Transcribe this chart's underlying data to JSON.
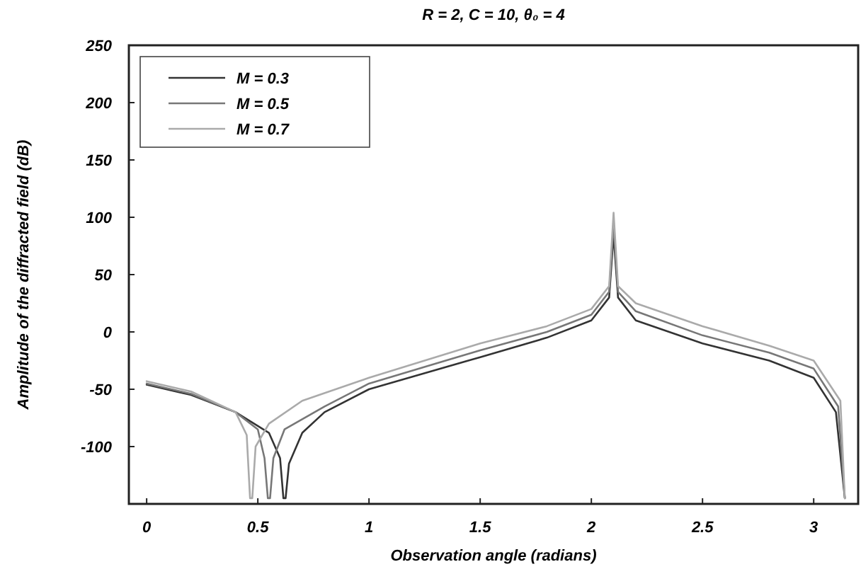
{
  "chart_data": {
    "type": "line",
    "title": "R = 2, C = 10, θ₀ = 4",
    "xlabel": "Observation angle (radians)",
    "ylabel": "Amplitude of the diffracted field (dB)",
    "xlim": [
      -0.08,
      3.2
    ],
    "xticks": [
      0,
      0.5,
      1,
      1.5,
      2,
      2.5,
      3
    ],
    "ylim": [
      -150,
      250
    ],
    "yticks": [
      -100,
      -50,
      0,
      50,
      100,
      150,
      200,
      250
    ],
    "legend": "top left",
    "grid": false,
    "line_style": "solid",
    "marker": "none",
    "series": [
      {
        "name": "M = 0.3",
        "color": "#333333",
        "x": [
          0,
          0.2,
          0.4,
          0.55,
          0.6,
          0.615,
          0.625,
          0.64,
          0.7,
          0.8,
          1,
          1.5,
          1.8,
          2,
          2.08,
          2.1,
          2.12,
          2.2,
          2.5,
          2.8,
          3,
          3.1,
          3.14
        ],
        "values": [
          -46,
          -55,
          -70,
          -88,
          -110,
          -145,
          -145,
          -115,
          -88,
          -70,
          -50,
          -22,
          -5,
          10,
          30,
          85,
          30,
          10,
          -10,
          -25,
          -40,
          -70,
          -145
        ]
      },
      {
        "name": "M =  0.5",
        "color": "#777777",
        "x": [
          0,
          0.2,
          0.4,
          0.5,
          0.53,
          0.545,
          0.555,
          0.57,
          0.62,
          0.8,
          1,
          1.5,
          1.8,
          2,
          2.08,
          2.1,
          2.12,
          2.2,
          2.5,
          2.8,
          3,
          3.11,
          3.14
        ],
        "values": [
          -45,
          -54,
          -70,
          -85,
          -110,
          -145,
          -145,
          -110,
          -85,
          -65,
          -45,
          -16,
          0,
          15,
          35,
          95,
          35,
          18,
          -3,
          -18,
          -32,
          -65,
          -145
        ]
      },
      {
        "name": "M = 0.7",
        "color": "#aaaaaa",
        "x": [
          0,
          0.2,
          0.4,
          0.45,
          0.465,
          0.475,
          0.49,
          0.55,
          0.7,
          1,
          1.5,
          1.8,
          2,
          2.08,
          2.1,
          2.12,
          2.2,
          2.5,
          2.8,
          3,
          3.12,
          3.14
        ],
        "values": [
          -43,
          -52,
          -70,
          -90,
          -145,
          -145,
          -100,
          -80,
          -60,
          -40,
          -10,
          5,
          20,
          40,
          104,
          40,
          25,
          5,
          -12,
          -25,
          -60,
          -145
        ]
      }
    ]
  }
}
